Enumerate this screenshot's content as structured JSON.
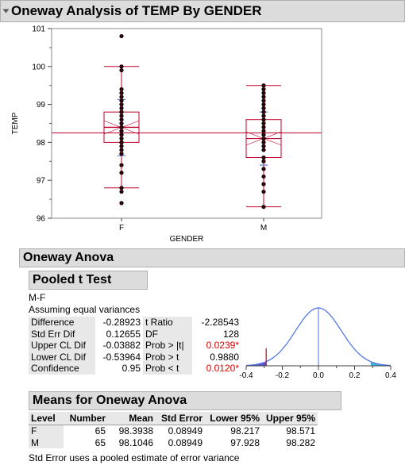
{
  "title": "Oneway Analysis of TEMP By GENDER",
  "oneway_anova_title": "Oneway Anova",
  "pooled_title": "Pooled t Test",
  "contrast": "M-F",
  "assumption": "Assuming equal variances",
  "colors": {
    "box": "#c0002a",
    "points": "#000000",
    "points_inner": "#c0002a",
    "header_bg": "#dcdcdc",
    "curve": "#4a6fe8",
    "p_value_red": "#e00000",
    "shade_left": "#3b3bc8",
    "shade_right": "#20a8d8"
  },
  "left_stats": [
    {
      "label": "Difference",
      "value": "-0.28923"
    },
    {
      "label": "Std Err Dif",
      "value": "0.12655"
    },
    {
      "label": "Upper CL Dif",
      "value": "-0.03882"
    },
    {
      "label": "Lower CL Dif",
      "value": "-0.53964"
    },
    {
      "label": "Confidence",
      "value": "0.95"
    }
  ],
  "right_stats": [
    {
      "label": "t Ratio",
      "value": "-2.28543",
      "red": false
    },
    {
      "label": "DF",
      "value": "128",
      "red": false
    },
    {
      "label": "Prob > |t|",
      "value": "0.0239*",
      "red": true
    },
    {
      "label": "Prob > t",
      "value": "0.9880",
      "red": false
    },
    {
      "label": "Prob < t",
      "value": "0.0120*",
      "red": true
    }
  ],
  "means_title": "Means for Oneway Anova",
  "means_columns": [
    "Level",
    "Number",
    "Mean",
    "Std Error",
    "Lower 95%",
    "Upper 95%"
  ],
  "means_rows": [
    [
      "F",
      "65",
      "98.3938",
      "0.08949",
      "98.217",
      "98.571"
    ],
    [
      "M",
      "65",
      "98.1046",
      "0.08949",
      "97.928",
      "98.282"
    ]
  ],
  "footnote": "Std Error uses a pooled estimate of error variance",
  "chart_data": [
    {
      "type": "box",
      "xlabel": "GENDER",
      "ylabel": "TEMP",
      "categories": [
        "F",
        "M"
      ],
      "ylim": [
        96,
        101
      ],
      "yticks": [
        96,
        97,
        98,
        99,
        100,
        101
      ],
      "grand_mean": 98.25,
      "boxes": [
        {
          "name": "F",
          "min": 96.8,
          "q1": 98.0,
          "median": 98.4,
          "q3": 98.8,
          "max": 100.0,
          "mean": 98.39,
          "ci": [
            98.22,
            98.57
          ],
          "sd_marks": [
            97.65,
            99.13
          ]
        },
        {
          "name": "M",
          "min": 96.3,
          "q1": 97.6,
          "median": 98.1,
          "q3": 98.6,
          "max": 99.5,
          "mean": 98.1,
          "ci": [
            97.93,
            98.28
          ],
          "sd_marks": [
            97.4,
            98.8
          ]
        }
      ],
      "points": {
        "F": [
          96.4,
          96.7,
          96.8,
          97.2,
          97.4,
          97.7,
          97.8,
          97.9,
          98.0,
          98.0,
          98.1,
          98.2,
          98.2,
          98.3,
          98.4,
          98.4,
          98.5,
          98.6,
          98.7,
          98.8,
          98.8,
          98.9,
          99.0,
          99.1,
          99.2,
          99.3,
          99.4,
          99.9,
          100.0,
          100.8
        ],
        "M": [
          96.3,
          96.7,
          96.9,
          97.1,
          97.3,
          97.5,
          97.6,
          97.8,
          97.9,
          98.0,
          98.1,
          98.2,
          98.3,
          98.4,
          98.5,
          98.6,
          98.7,
          98.8,
          98.9,
          99.0,
          99.1,
          99.2,
          99.3,
          99.4,
          99.5
        ]
      }
    },
    {
      "type": "line",
      "name": "t distribution",
      "xlim": [
        -0.4,
        0.4
      ],
      "xticks": [
        -0.4,
        -0.2,
        0.0,
        0.2,
        0.4
      ],
      "x_tick_labels": [
        "-0.4",
        "-0.2",
        "0.0",
        "0.2",
        "0.4"
      ],
      "sd": 0.12655,
      "estimate": -0.28923,
      "center": 0.0,
      "shaded_tails": [
        [
          -0.4,
          -0.28923
        ],
        [
          0.28923,
          0.4
        ]
      ]
    }
  ]
}
